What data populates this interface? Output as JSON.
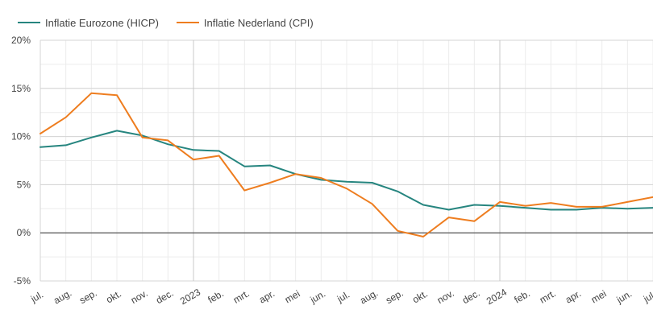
{
  "chart_data": {
    "type": "line",
    "categories": [
      "jul.",
      "aug.",
      "sep.",
      "okt.",
      "nov.",
      "dec.",
      "2023",
      "feb.",
      "mrt.",
      "apr.",
      "mei",
      "jun.",
      "jul.",
      "aug.",
      "sep.",
      "okt.",
      "nov.",
      "dec.",
      "2024",
      "feb.",
      "mrt.",
      "apr.",
      "mei",
      "jun.",
      "jul."
    ],
    "series": [
      {
        "name": "Inflatie Eurozone (HICP)",
        "color": "#26857f",
        "values": [
          8.9,
          9.1,
          9.9,
          10.6,
          10.1,
          9.2,
          8.6,
          8.5,
          6.9,
          7.0,
          6.1,
          5.5,
          5.3,
          5.2,
          4.3,
          2.9,
          2.4,
          2.9,
          2.8,
          2.6,
          2.4,
          2.4,
          2.6,
          2.5,
          2.6
        ]
      },
      {
        "name": "Inflatie Nederland (CPI)",
        "color": "#ee7d1f",
        "values": [
          10.3,
          12.0,
          14.5,
          14.3,
          9.9,
          9.6,
          7.6,
          8.0,
          4.4,
          5.2,
          6.1,
          5.7,
          4.6,
          3.0,
          0.2,
          -0.4,
          1.6,
          1.2,
          3.2,
          2.8,
          3.1,
          2.7,
          2.7,
          3.2,
          3.7
        ]
      }
    ],
    "y_ticks": [
      "20%",
      "15%",
      "10%",
      "5%",
      "0%",
      "-5%"
    ],
    "ylim": [
      -5,
      20
    ],
    "grid": true,
    "legend_position": "top-left",
    "year_markers": [
      "2023",
      "2024"
    ]
  }
}
